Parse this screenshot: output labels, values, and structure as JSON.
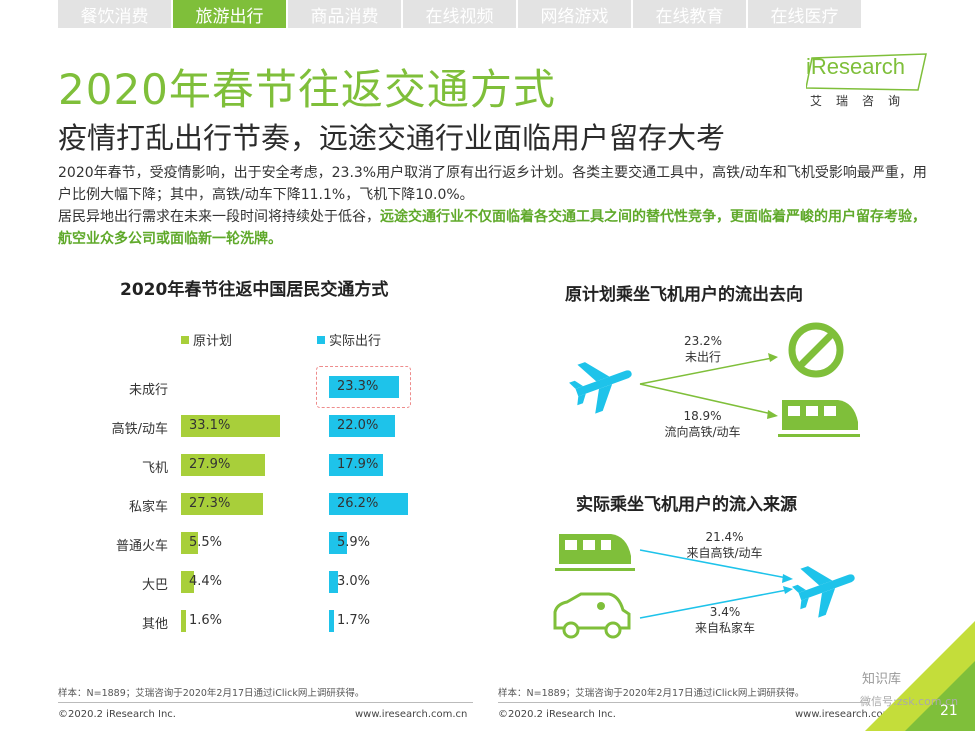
{
  "tabs": [
    "餐饮消费",
    "旅游出行",
    "商品消费",
    "在线视频",
    "网络游戏",
    "在线教育",
    "在线医疗"
  ],
  "active_tab_index": 1,
  "title": "2020年春节往返交通方式",
  "subtitle": "疫情打乱出行节奏，远途交通行业面临用户留存大考",
  "logo": {
    "text": "iResearch",
    "sub": "艾瑞咨询"
  },
  "paragraph": {
    "line1": "2020年春节，受疫情影响，出于安全考虑，23.3%用户取消了原有出行返乡计划。各类主要交通工具中，高铁/动车和飞机受影响最严重，用户比例大幅下降；其中，高铁/动车下降11.1%，飞机下降10.0%。",
    "line2_plain": "居民异地出行需求在未来一段时间将持续处于低谷，",
    "line2_highlight": "远途交通行业不仅面临着各交通工具之间的替代性竞争，更面临着严峻的用户留存考验，航空业众多公司或面临新一轮洗牌。"
  },
  "left_chart": {
    "title": "2020年春节往返中国居民交通方式",
    "legend": [
      "原计划",
      "实际出行"
    ]
  },
  "chart_data": {
    "type": "bar",
    "categories": [
      "未成行",
      "高铁/动车",
      "飞机",
      "私家车",
      "普通火车",
      "大巴",
      "其他"
    ],
    "series": [
      {
        "name": "原计划",
        "values": [
          null,
          33.1,
          27.9,
          27.3,
          5.5,
          4.4,
          1.6
        ],
        "labels": [
          "",
          "33.1%",
          "27.9%",
          "27.3%",
          "5.5%",
          "4.4%",
          "1.6%"
        ]
      },
      {
        "name": "实际出行",
        "values": [
          23.3,
          22.0,
          17.9,
          26.2,
          5.9,
          3.0,
          1.7
        ],
        "labels": [
          "23.3%",
          "22.0%",
          "17.9%",
          "26.2%",
          "5.9%",
          "3.0%",
          "1.7%"
        ]
      }
    ],
    "colors": {
      "原计划": "#a8cf3a",
      "实际出行": "#1ec3ea"
    }
  },
  "right_top": {
    "title": "原计划乘坐飞机用户的流出去向",
    "flows": [
      {
        "pct": "23.2%",
        "label": "未出行"
      },
      {
        "pct": "18.9%",
        "label": "流向高铁/动车"
      }
    ]
  },
  "right_bottom": {
    "title": "实际乘坐飞机用户的流入来源",
    "flows": [
      {
        "pct": "21.4%",
        "label": "来自高铁/动车"
      },
      {
        "pct": "3.4%",
        "label": "来自私家车"
      }
    ]
  },
  "footer": {
    "note_left": "样本：N=1889；艾瑞咨询于2020年2月17日通过iClick网上调研获得。",
    "note_right": "样本：N=1889；艾瑞咨询于2020年2月17日通过iClick网上调研获得。",
    "copyright_left": "©2020.2 iResearch Inc.",
    "url_left": "www.iresearch.com.cn",
    "copyright_right": "©2020.2 iResearch Inc.",
    "url_right": "www.iresearch.com.cn",
    "page": "21"
  },
  "watermark": {
    "line1": "知识库",
    "line2": "微信号:zsk.com.cn"
  },
  "icons": [
    "plane-icon",
    "no-entry-icon",
    "train-icon",
    "car-icon"
  ]
}
